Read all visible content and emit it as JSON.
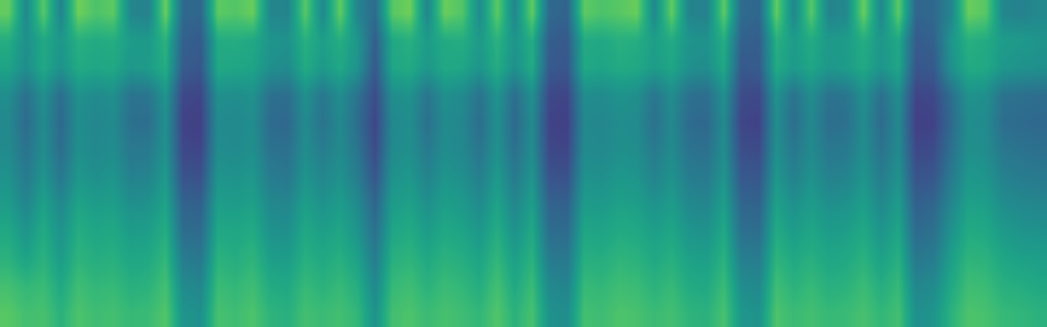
{
  "chart_data": {
    "type": "heatmap",
    "color": "viridis",
    "tick_labels": false,
    "zlim": [
      0,
      100
    ],
    "cells": [
      [
        76,
        47,
        74,
        45,
        78,
        72,
        75,
        46,
        44,
        77,
        34,
        33,
        75,
        73,
        77,
        46,
        45,
        74,
        47,
        76,
        45,
        35,
        74,
        78,
        46,
        77,
        73,
        48,
        75,
        46,
        76,
        34,
        32,
        75,
        72,
        74,
        77,
        47,
        76,
        45,
        44,
        75,
        35,
        33,
        76,
        46,
        74,
        45,
        47,
        77,
        46,
        75,
        33,
        34,
        45,
        77,
        74,
        46,
        44,
        47
      ],
      [
        62,
        50,
        60,
        53,
        63,
        61,
        62,
        55,
        54,
        64,
        31,
        29,
        61,
        62,
        60,
        52,
        51,
        63,
        56,
        62,
        53,
        30,
        60,
        63,
        55,
        61,
        62,
        54,
        64,
        52,
        62,
        30,
        28,
        61,
        60,
        63,
        62,
        56,
        61,
        52,
        51,
        62,
        31,
        30,
        63,
        55,
        61,
        54,
        55,
        62,
        53,
        60,
        29,
        31,
        52,
        63,
        61,
        55,
        54,
        52
      ],
      [
        58,
        49,
        60,
        51,
        61,
        59,
        60,
        53,
        55,
        62,
        29,
        27,
        60,
        59,
        58,
        50,
        48,
        61,
        54,
        60,
        51,
        28,
        59,
        61,
        53,
        60,
        59,
        52,
        62,
        50,
        61,
        28,
        27,
        60,
        58,
        61,
        60,
        55,
        59,
        50,
        49,
        60,
        28,
        29,
        61,
        54,
        59,
        53,
        55,
        60,
        52,
        59,
        27,
        28,
        50,
        61,
        60,
        53,
        51,
        50
      ],
      [
        49,
        37,
        50,
        36,
        51,
        48,
        50,
        38,
        39,
        52,
        22,
        21,
        50,
        49,
        51,
        37,
        36,
        50,
        40,
        49,
        38,
        23,
        49,
        51,
        39,
        50,
        48,
        38,
        52,
        36,
        50,
        22,
        21,
        49,
        48,
        51,
        50,
        39,
        49,
        37,
        36,
        50,
        23,
        22,
        51,
        38,
        49,
        38,
        39,
        50,
        37,
        49,
        21,
        22,
        36,
        51,
        50,
        38,
        37,
        36
      ],
      [
        47,
        35,
        48,
        34,
        49,
        46,
        48,
        37,
        36,
        50,
        20,
        19,
        48,
        47,
        49,
        35,
        34,
        48,
        38,
        47,
        36,
        21,
        47,
        49,
        37,
        48,
        46,
        36,
        50,
        34,
        48,
        20,
        19,
        47,
        46,
        49,
        48,
        37,
        47,
        35,
        34,
        48,
        21,
        20,
        49,
        36,
        47,
        36,
        37,
        48,
        35,
        47,
        19,
        20,
        34,
        49,
        48,
        36,
        35,
        34
      ],
      [
        48,
        38,
        49,
        36,
        50,
        47,
        49,
        40,
        41,
        51,
        22,
        21,
        49,
        48,
        50,
        38,
        37,
        49,
        42,
        48,
        39,
        23,
        48,
        50,
        41,
        49,
        47,
        39,
        51,
        37,
        49,
        22,
        21,
        48,
        47,
        50,
        49,
        41,
        48,
        38,
        37,
        49,
        24,
        23,
        50,
        40,
        48,
        40,
        41,
        49,
        38,
        48,
        22,
        23,
        37,
        50,
        49,
        40,
        38,
        37
      ],
      [
        51,
        41,
        52,
        40,
        53,
        50,
        52,
        44,
        45,
        54,
        26,
        25,
        52,
        51,
        53,
        42,
        40,
        52,
        46,
        51,
        42,
        27,
        51,
        53,
        45,
        52,
        50,
        43,
        54,
        41,
        52,
        26,
        25,
        51,
        50,
        53,
        52,
        45,
        51,
        42,
        41,
        52,
        28,
        27,
        53,
        44,
        51,
        44,
        45,
        52,
        42,
        51,
        26,
        27,
        41,
        53,
        52,
        44,
        42,
        41
      ],
      [
        55,
        46,
        57,
        47,
        58,
        55,
        56,
        50,
        51,
        58,
        32,
        31,
        56,
        55,
        57,
        47,
        46,
        56,
        51,
        55,
        48,
        33,
        55,
        57,
        50,
        56,
        54,
        48,
        58,
        46,
        56,
        32,
        31,
        55,
        54,
        57,
        56,
        51,
        55,
        47,
        46,
        56,
        33,
        32,
        57,
        50,
        55,
        50,
        51,
        56,
        47,
        55,
        31,
        33,
        46,
        57,
        56,
        49,
        47,
        46
      ],
      [
        60,
        52,
        61,
        51,
        62,
        59,
        60,
        55,
        56,
        62,
        36,
        35,
        60,
        59,
        61,
        51,
        50,
        60,
        56,
        59,
        52,
        37,
        59,
        61,
        55,
        60,
        58,
        53,
        62,
        51,
        60,
        36,
        35,
        59,
        58,
        61,
        60,
        56,
        59,
        52,
        51,
        60,
        37,
        36,
        61,
        55,
        59,
        55,
        56,
        60,
        52,
        59,
        35,
        37,
        51,
        61,
        60,
        54,
        52,
        51
      ],
      [
        64,
        58,
        64,
        55,
        65,
        62,
        63,
        59,
        60,
        66,
        42,
        40,
        64,
        62,
        65,
        56,
        55,
        63,
        60,
        63,
        57,
        42,
        63,
        65,
        60,
        64,
        62,
        58,
        66,
        56,
        64,
        41,
        40,
        63,
        62,
        65,
        64,
        60,
        63,
        57,
        56,
        64,
        43,
        42,
        65,
        60,
        63,
        59,
        60,
        64,
        57,
        63,
        40,
        42,
        56,
        65,
        64,
        59,
        57,
        56
      ],
      [
        70,
        66,
        68,
        60,
        69,
        66,
        67,
        63,
        64,
        70,
        48,
        46,
        68,
        66,
        69,
        61,
        60,
        67,
        64,
        67,
        62,
        47,
        67,
        69,
        64,
        68,
        66,
        62,
        70,
        60,
        68,
        47,
        45,
        67,
        66,
        69,
        68,
        64,
        67,
        61,
        60,
        68,
        49,
        47,
        69,
        64,
        67,
        63,
        64,
        68,
        62,
        67,
        46,
        48,
        60,
        69,
        68,
        63,
        62,
        60
      ],
      [
        74,
        70,
        71,
        64,
        72,
        69,
        70,
        67,
        68,
        73,
        52,
        50,
        71,
        69,
        72,
        65,
        63,
        70,
        68,
        70,
        66,
        51,
        70,
        72,
        68,
        71,
        69,
        66,
        73,
        64,
        71,
        51,
        49,
        70,
        69,
        72,
        71,
        68,
        70,
        65,
        64,
        71,
        53,
        51,
        72,
        68,
        70,
        67,
        68,
        71,
        66,
        70,
        50,
        52,
        64,
        72,
        71,
        67,
        66,
        64
      ]
    ]
  }
}
